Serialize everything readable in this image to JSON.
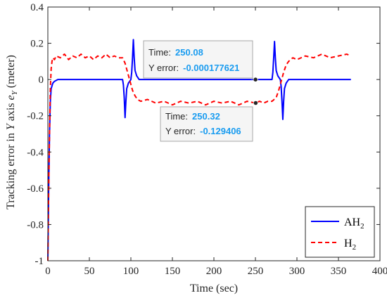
{
  "chart_data": {
    "type": "line",
    "xlabel": "Time (sec)",
    "ylabel_prefix": "Tracking error in ",
    "ylabel_var": "Y",
    "ylabel_mid": " axis ",
    "ylabel_sym": "e",
    "ylabel_sub": "Y",
    "ylabel_suffix": " (meter)",
    "xlim": [
      0,
      400
    ],
    "ylim": [
      -1,
      0.4
    ],
    "xticks": [
      "0",
      "50",
      "100",
      "150",
      "200",
      "250",
      "300",
      "350",
      "400"
    ],
    "yticks": [
      "-1",
      "-0.8",
      "-0.6",
      "-0.4",
      "-0.2",
      "0",
      "0.2",
      "0.4"
    ],
    "xtick_values": [
      0,
      50,
      100,
      150,
      200,
      250,
      300,
      350,
      400
    ],
    "ytick_values": [
      -1,
      -0.8,
      -0.6,
      -0.4,
      -0.2,
      0,
      0.2,
      0.4
    ],
    "grid": false,
    "legend_placement": "bottom-right",
    "series": [
      {
        "name": "AH",
        "name_sub": "2",
        "color": "#0000ff",
        "style": "solid",
        "x": [
          0,
          1,
          2,
          3,
          4,
          6,
          8,
          12,
          20,
          90,
          91,
          92,
          93,
          94,
          95,
          97,
          100,
          101,
          102,
          103,
          104,
          105,
          107,
          110,
          120,
          270,
          271,
          272,
          273,
          274,
          275,
          277,
          280,
          281,
          282,
          283,
          284,
          285,
          287,
          290,
          300,
          365
        ],
        "y": [
          -1,
          -0.6,
          -0.3,
          -0.12,
          -0.05,
          -0.02,
          -0.01,
          0,
          0,
          0,
          -0.03,
          -0.1,
          -0.21,
          -0.12,
          -0.05,
          -0.02,
          0,
          0.04,
          0.12,
          0.22,
          0.12,
          0.05,
          0.02,
          0,
          0,
          0,
          0.04,
          0.12,
          0.21,
          0.12,
          0.05,
          0.02,
          0,
          -0.04,
          -0.12,
          -0.22,
          -0.12,
          -0.05,
          -0.02,
          0,
          0,
          0
        ]
      },
      {
        "name": "H",
        "name_sub": "2",
        "color": "#ff0000",
        "style": "dashed",
        "x": [
          0,
          1,
          2,
          3,
          4,
          5,
          6,
          8,
          10,
          15,
          20,
          25,
          30,
          35,
          40,
          45,
          50,
          55,
          60,
          65,
          70,
          75,
          80,
          85,
          90,
          93,
          96,
          99,
          102,
          105,
          108,
          112,
          120,
          130,
          140,
          150,
          160,
          170,
          180,
          190,
          200,
          210,
          220,
          230,
          240,
          250,
          255,
          260,
          265,
          270,
          275,
          278,
          281,
          284,
          287,
          290,
          295,
          300,
          310,
          320,
          330,
          340,
          350,
          360,
          365
        ],
        "y": [
          -1,
          -0.62,
          -0.3,
          -0.05,
          0.06,
          0.1,
          0.12,
          0.11,
          0.13,
          0.12,
          0.14,
          0.11,
          0.13,
          0.12,
          0.14,
          0.12,
          0.13,
          0.11,
          0.13,
          0.12,
          0.14,
          0.12,
          0.13,
          0.12,
          0.12,
          0.09,
          0.04,
          -0.01,
          -0.06,
          -0.09,
          -0.11,
          -0.12,
          -0.11,
          -0.13,
          -0.12,
          -0.14,
          -0.12,
          -0.13,
          -0.12,
          -0.14,
          -0.12,
          -0.13,
          -0.12,
          -0.14,
          -0.12,
          -0.13,
          -0.12,
          -0.13,
          -0.12,
          -0.12,
          -0.1,
          -0.06,
          -0.01,
          0.04,
          0.08,
          0.1,
          0.12,
          0.11,
          0.13,
          0.12,
          0.14,
          0.12,
          0.13,
          0.14,
          0.13
        ]
      }
    ],
    "datatips": [
      {
        "time_label": "Time:",
        "time_value": "250.08",
        "err_label": "Y error:",
        "err_value": "-0.000177621",
        "x": 250.08,
        "y": -0.000177621
      },
      {
        "time_label": "Time:",
        "time_value": "250.32",
        "err_label": "Y error:",
        "err_value": "-0.129406",
        "x": 250.32,
        "y": -0.129406
      }
    ]
  }
}
